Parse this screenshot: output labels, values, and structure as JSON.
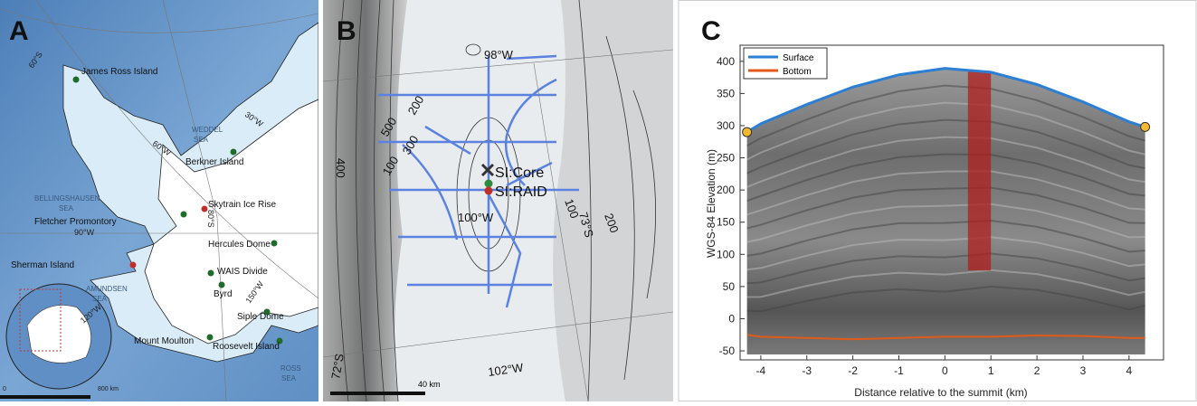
{
  "map_a": {
    "panel_label": "A",
    "places": [
      "James Ross Island",
      "Berkner Island",
      "Skytrain Ice Rise",
      "Fletcher Promontory",
      "Hercules Dome",
      "Sherman Island",
      "WAIS Divide",
      "Byrd",
      "Siple Dome",
      "Mount Moulton",
      "Roosevelt Island"
    ],
    "seas": [
      [
        "WEDDEL",
        "SEA"
      ],
      [
        "BELLINGSHAUSEN",
        "SEA"
      ],
      [
        "AMUNDSEN",
        "SEA"
      ],
      [
        "ROSS",
        "SEA"
      ]
    ],
    "graticule": [
      "60°S",
      "60°W",
      "30°W",
      "80°S",
      "90°W",
      "120°W",
      "150°W"
    ],
    "scale": [
      "0",
      "800 km"
    ]
  },
  "map_b": {
    "panel_label": "B",
    "sites": [
      "SI:Core",
      "SI:RAID"
    ],
    "contours": [
      "500",
      "200",
      "300",
      "100",
      "400",
      "100",
      "200"
    ],
    "graticule": [
      "98°W",
      "100°W",
      "73°S",
      "72°S",
      "102°W"
    ],
    "scale": "40 km"
  },
  "chart_data": {
    "type": "line",
    "panel_label": "C",
    "xlabel": "Distance relative to the summit (km)",
    "ylabel": "WGS-84 Elevation (m)",
    "x": [
      -4.3,
      -4,
      -3,
      -2,
      -1,
      0,
      1,
      2,
      3,
      4,
      4.35
    ],
    "series": [
      {
        "name": "Surface",
        "color": "#2b7fd4",
        "values": [
          290,
          303,
          333,
          360,
          379,
          389,
          383,
          364,
          337,
          306,
          298
        ]
      },
      {
        "name": "Bottom",
        "color": "#e05a1a",
        "values": [
          -25,
          -28,
          -30,
          -32,
          -30,
          -28,
          -28,
          -26,
          -27,
          -30,
          -30
        ]
      }
    ],
    "end_marker_color": "#f5b82e",
    "highlight": {
      "x": [
        0.5,
        1.0
      ],
      "y": [
        75,
        385
      ],
      "color": "#b01e1e"
    },
    "xlim": [
      -4.45,
      4.75
    ],
    "ylim": [
      -64,
      425
    ],
    "xticks": [
      -4,
      -3,
      -2,
      -1,
      0,
      1,
      2,
      3,
      4
    ],
    "yticks": [
      -50,
      0,
      50,
      100,
      150,
      200,
      250,
      300,
      350,
      400
    ],
    "legend": "upper left"
  }
}
